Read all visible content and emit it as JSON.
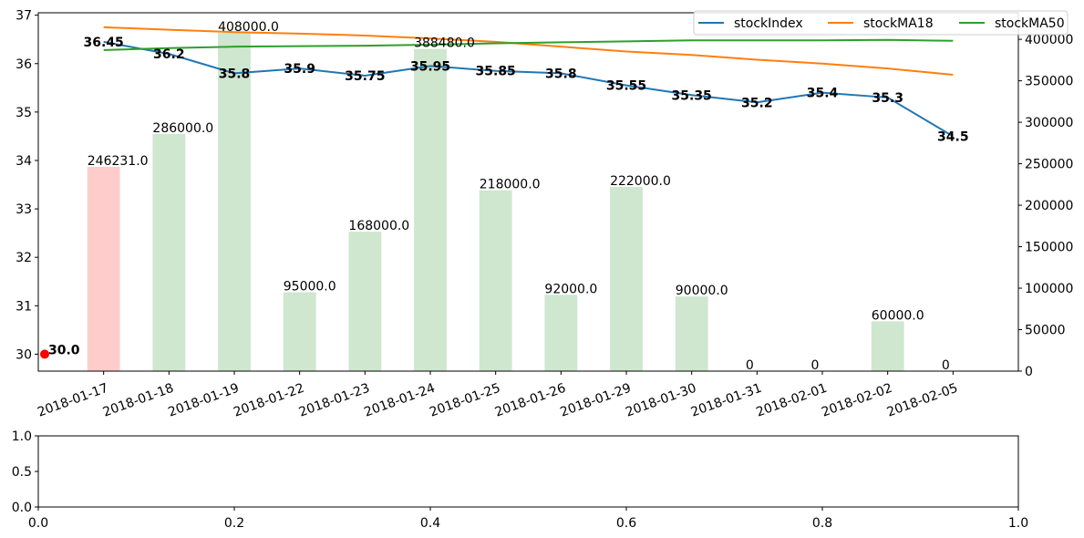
{
  "chart_data": [
    {
      "type": "bar+line",
      "title": "",
      "categories": [
        "2018-01-17",
        "2018-01-18",
        "2018-01-19",
        "2018-01-22",
        "2018-01-23",
        "2018-01-24",
        "2018-01-25",
        "2018-01-26",
        "2018-01-29",
        "2018-01-30",
        "2018-01-31",
        "2018-02-01",
        "2018-02-02",
        "2018-02-05"
      ],
      "series": [
        {
          "name": "stockIndex",
          "axis": "left",
          "color": "#1f77b4",
          "values": [
            36.45,
            36.2,
            35.8,
            35.9,
            35.75,
            35.95,
            35.85,
            35.8,
            35.55,
            35.35,
            35.2,
            35.4,
            35.3,
            34.5
          ],
          "labels": [
            "36.45",
            "36.2",
            "35.8",
            "35.9",
            "35.75",
            "35.95",
            "35.85",
            "35.8",
            "35.55",
            "35.35",
            "35.2",
            "35.4",
            "35.3",
            "34.5"
          ]
        },
        {
          "name": "stockMA18",
          "axis": "left",
          "color": "#ff7f0e",
          "values": [
            36.75,
            36.7,
            36.65,
            36.62,
            36.58,
            36.52,
            36.45,
            36.35,
            36.25,
            36.18,
            36.08,
            36.0,
            35.9,
            35.77
          ]
        },
        {
          "name": "stockMA50",
          "axis": "left",
          "color": "#2ca02c",
          "values": [
            36.28,
            36.32,
            36.35,
            36.36,
            36.37,
            36.39,
            36.42,
            36.44,
            36.46,
            36.48,
            36.48,
            36.48,
            36.49,
            36.47
          ]
        }
      ],
      "bars": {
        "axis": "right",
        "values": [
          246231,
          286000,
          408000,
          95000,
          168000,
          388480,
          218000,
          92000,
          222000,
          90000,
          0,
          0,
          60000,
          0
        ],
        "labels": [
          "246231.0",
          "286000.0",
          "408000.0",
          "95000.0",
          "168000.0",
          "388480.0",
          "218000.0",
          "92000.0",
          "222000.0",
          "90000.0",
          "0",
          "0",
          "60000.0",
          "0"
        ],
        "colors": [
          "#ffcccc",
          "#cfe6cf",
          "#cfe6cf",
          "#cfe6cf",
          "#cfe6cf",
          "#cfe6cf",
          "#cfe6cf",
          "#cfe6cf",
          "#cfe6cf",
          "#cfe6cf",
          "#cfe6cf",
          "#cfe6cf",
          "#cfe6cf",
          "#cfe6cf"
        ]
      },
      "marker": {
        "x_index": -1,
        "value": 30.0,
        "label": "30.0",
        "color": "#ff0000"
      },
      "ylim_left": [
        29.65,
        37.05
      ],
      "yticks_left": [
        "30",
        "31",
        "32",
        "33",
        "34",
        "35",
        "36",
        "37"
      ],
      "ylim_right": [
        0,
        432000
      ],
      "yticks_right": [
        "0",
        "50000",
        "100000",
        "150000",
        "200000",
        "250000",
        "300000",
        "350000",
        "400000"
      ],
      "xlim": [
        -1,
        14
      ],
      "legend_position": "top-right",
      "grid": false
    },
    {
      "type": "empty",
      "xlim": [
        0,
        1
      ],
      "ylim": [
        0,
        1
      ],
      "xticks": [
        "0.0",
        "0.2",
        "0.4",
        "0.6",
        "0.8",
        "1.0"
      ],
      "yticks": [
        "0.0",
        "0.5",
        "1.0"
      ]
    }
  ]
}
